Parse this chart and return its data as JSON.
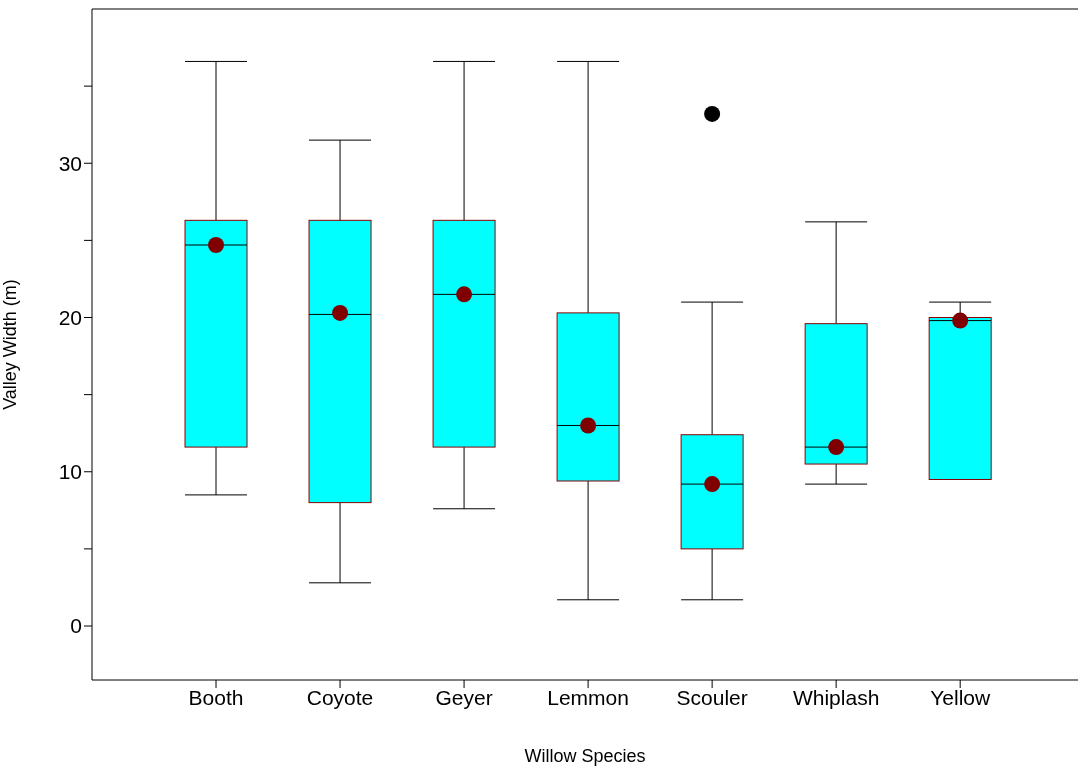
{
  "chart_data": {
    "type": "box",
    "xlabel": "Willow Species",
    "ylabel": "Valley Width (m)",
    "categories": [
      "Booth",
      "Coyote",
      "Geyer",
      "Lemmon",
      "Scouler",
      "Whiplash",
      "Yellow"
    ],
    "boxes": [
      {
        "low": 8.5,
        "q1": 11.6,
        "median": 24.7,
        "q3": 26.3,
        "high": 36.6,
        "mean": 24.7
      },
      {
        "low": 2.8,
        "q1": 8.0,
        "median": 20.2,
        "q3": 26.3,
        "high": 31.5,
        "mean": 20.3
      },
      {
        "low": 7.6,
        "q1": 11.6,
        "median": 21.5,
        "q3": 26.3,
        "high": 36.6,
        "mean": 21.5
      },
      {
        "low": 1.7,
        "q1": 9.4,
        "median": 13.0,
        "q3": 20.3,
        "high": 36.6,
        "mean": 13.0
      },
      {
        "low": 1.7,
        "q1": 5.0,
        "median": 9.2,
        "q3": 12.4,
        "high": 21.0,
        "mean": 9.2,
        "outliers": [
          33.2
        ]
      },
      {
        "low": 9.2,
        "q1": 10.5,
        "median": 11.6,
        "q3": 19.6,
        "high": 26.2,
        "mean": 11.6
      },
      {
        "low": 9.5,
        "q1": 9.5,
        "median": 19.8,
        "q3": 20.0,
        "high": 21.0,
        "mean": 19.8
      }
    ],
    "color": "#00ffff",
    "marker": "circle",
    "ylim": [
      -3.5,
      40
    ],
    "yticks": [
      0,
      {
        "value": 5,
        "label": null
      },
      10,
      {
        "value": 15,
        "label": null
      },
      20,
      {
        "value": 25,
        "label": null
      },
      30,
      {
        "value": 35,
        "label": null
      }
    ],
    "grid": false
  }
}
